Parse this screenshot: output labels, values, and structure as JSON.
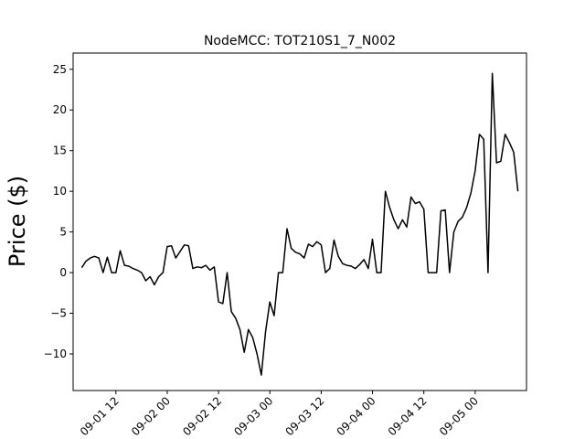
{
  "chart_data": {
    "type": "line",
    "title": "NodeMCC: TOT210S1_7_N002",
    "xlabel": "",
    "ylabel": "Price ($)",
    "ylim": [
      -14.5,
      27.0
    ],
    "xlim": [
      "2020-09-01 02:00",
      "2020-09-05 12:00"
    ],
    "x_tick_labels": [
      "09-01 12",
      "09-02 00",
      "09-02 12",
      "09-03 00",
      "09-03 12",
      "09-04 00",
      "09-04 12",
      "09-05 00"
    ],
    "y_ticks": [
      -10,
      -5,
      0,
      5,
      10,
      15,
      20,
      25
    ],
    "grid": false,
    "series": [
      {
        "color": "#000000",
        "x": [
          "2020-09-01 04:00",
          "2020-09-01 05:00",
          "2020-09-01 06:00",
          "2020-09-01 07:00",
          "2020-09-01 08:00",
          "2020-09-01 09:00",
          "2020-09-01 10:00",
          "2020-09-01 11:00",
          "2020-09-01 12:00",
          "2020-09-01 13:00",
          "2020-09-01 14:00",
          "2020-09-01 15:00",
          "2020-09-01 16:00",
          "2020-09-01 17:00",
          "2020-09-01 18:00",
          "2020-09-01 19:00",
          "2020-09-01 20:00",
          "2020-09-01 21:00",
          "2020-09-01 22:00",
          "2020-09-01 23:00",
          "2020-09-02 00:00",
          "2020-09-02 01:00",
          "2020-09-02 02:00",
          "2020-09-02 03:00",
          "2020-09-02 04:00",
          "2020-09-02 05:00",
          "2020-09-02 06:00",
          "2020-09-02 07:00",
          "2020-09-02 08:00",
          "2020-09-02 09:00",
          "2020-09-02 10:00",
          "2020-09-02 11:00",
          "2020-09-02 12:00",
          "2020-09-02 13:00",
          "2020-09-02 14:00",
          "2020-09-02 15:00",
          "2020-09-02 16:00",
          "2020-09-02 17:00",
          "2020-09-02 18:00",
          "2020-09-02 19:00",
          "2020-09-02 20:00",
          "2020-09-02 21:00",
          "2020-09-02 22:00",
          "2020-09-02 23:00",
          "2020-09-03 00:00",
          "2020-09-03 01:00",
          "2020-09-03 02:00",
          "2020-09-03 03:00",
          "2020-09-03 04:00",
          "2020-09-03 05:00",
          "2020-09-03 06:00",
          "2020-09-03 07:00",
          "2020-09-03 08:00",
          "2020-09-03 09:00",
          "2020-09-03 10:00",
          "2020-09-03 11:00",
          "2020-09-03 12:00",
          "2020-09-03 13:00",
          "2020-09-03 14:00",
          "2020-09-03 15:00",
          "2020-09-03 16:00",
          "2020-09-03 17:00",
          "2020-09-03 18:00",
          "2020-09-03 19:00",
          "2020-09-03 20:00",
          "2020-09-03 21:00",
          "2020-09-03 22:00",
          "2020-09-03 23:00",
          "2020-09-04 00:00",
          "2020-09-04 01:00",
          "2020-09-04 02:00",
          "2020-09-04 03:00",
          "2020-09-04 04:00",
          "2020-09-04 05:00",
          "2020-09-04 06:00",
          "2020-09-04 07:00",
          "2020-09-04 08:00",
          "2020-09-04 09:00",
          "2020-09-04 10:00",
          "2020-09-04 11:00",
          "2020-09-04 12:00",
          "2020-09-04 13:00",
          "2020-09-04 14:00",
          "2020-09-04 15:00",
          "2020-09-04 16:00",
          "2020-09-04 17:00",
          "2020-09-04 18:00",
          "2020-09-04 19:00",
          "2020-09-04 20:00",
          "2020-09-04 21:00",
          "2020-09-04 22:00",
          "2020-09-04 23:00",
          "2020-09-05 00:00",
          "2020-09-05 01:00",
          "2020-09-05 02:00",
          "2020-09-05 03:00",
          "2020-09-05 04:00",
          "2020-09-05 05:00",
          "2020-09-05 06:00",
          "2020-09-05 07:00",
          "2020-09-05 08:00",
          "2020-09-05 09:00",
          "2020-09-05 10:00"
        ],
        "values": [
          0.6,
          1.4,
          1.8,
          2.0,
          1.8,
          0.0,
          1.9,
          0.0,
          0.0,
          2.7,
          0.9,
          0.8,
          0.5,
          0.3,
          0.0,
          -1.0,
          -0.5,
          -1.5,
          -0.5,
          0.0,
          3.2,
          3.3,
          1.8,
          2.6,
          3.4,
          3.3,
          0.5,
          0.7,
          0.6,
          0.9,
          0.3,
          0.7,
          -3.6,
          -3.8,
          0.0,
          -4.8,
          -5.6,
          -7.0,
          -9.8,
          -7.0,
          -8.0,
          -10.0,
          -12.6,
          -7.2,
          -3.6,
          -5.3,
          0.0,
          0.0,
          5.4,
          3.0,
          2.5,
          2.3,
          1.8,
          3.5,
          3.2,
          3.8,
          3.4,
          0.0,
          0.5,
          4.0,
          2.0,
          1.1,
          0.9,
          0.8,
          0.5,
          1.0,
          1.6,
          0.5,
          4.1,
          0.0,
          0.0,
          10.0,
          8.0,
          6.5,
          5.4,
          6.5,
          5.6,
          9.3,
          8.5,
          8.7,
          7.8,
          0.0,
          0.0,
          0.0,
          7.6,
          7.7,
          0.0,
          5.0,
          6.3,
          6.8,
          8.0,
          9.8,
          12.5,
          17.0,
          16.4,
          0.0,
          24.5,
          13.5,
          13.7,
          17.0,
          16.0,
          14.8,
          10.0
        ]
      }
    ]
  }
}
